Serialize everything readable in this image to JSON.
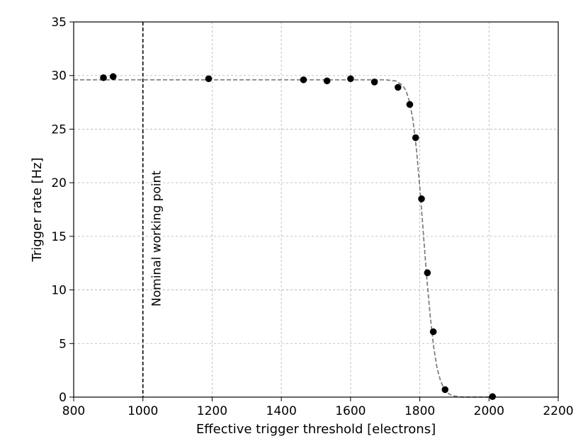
{
  "chart_data": {
    "type": "scatter",
    "title": "",
    "xlabel": "Effective trigger threshold [electrons]",
    "ylabel": "Trigger rate [Hz]",
    "xlim": [
      800,
      2200
    ],
    "ylim": [
      0,
      35
    ],
    "xticks": [
      800,
      1000,
      1200,
      1400,
      1600,
      1800,
      2000,
      2200
    ],
    "yticks": [
      0,
      5,
      10,
      15,
      20,
      25,
      30,
      35
    ],
    "grid": true,
    "legend": "none",
    "colors": {
      "points": "#000000",
      "fit": "#808080",
      "grid": "#b0b0b0",
      "reference_line": "#000000"
    },
    "points": [
      {
        "x": 886,
        "y": 29.8
      },
      {
        "x": 914,
        "y": 29.9
      },
      {
        "x": 1190,
        "y": 29.7
      },
      {
        "x": 1464,
        "y": 29.6
      },
      {
        "x": 1532,
        "y": 29.5
      },
      {
        "x": 1600,
        "y": 29.7
      },
      {
        "x": 1669,
        "y": 29.4
      },
      {
        "x": 1737,
        "y": 28.9
      },
      {
        "x": 1771,
        "y": 27.3
      },
      {
        "x": 1788,
        "y": 24.2
      },
      {
        "x": 1805,
        "y": 18.5
      },
      {
        "x": 1822,
        "y": 11.6
      },
      {
        "x": 1839,
        "y": 6.1
      },
      {
        "x": 1873,
        "y": 0.7
      },
      {
        "x": 2010,
        "y": 0.05
      }
    ],
    "fit_curve": {
      "style": "dashed",
      "x": [
        800,
        1700,
        1730,
        1750,
        1760,
        1770,
        1780,
        1790,
        1800,
        1810,
        1820,
        1830,
        1840,
        1850,
        1860,
        1870,
        1880,
        1890,
        1900,
        1910,
        1925,
        1950,
        2000
      ],
      "y": [
        29.6,
        29.6,
        29.5,
        29.1,
        28.6,
        27.6,
        25.9,
        23.2,
        19.6,
        15.4,
        11.2,
        7.6,
        4.7,
        2.7,
        1.5,
        0.8,
        0.4,
        0.2,
        0.1,
        0.05,
        0.0,
        0.0,
        0.0
      ]
    },
    "reference_line": {
      "x": 1000,
      "style": "dashed",
      "label": "Nominal working point"
    }
  }
}
